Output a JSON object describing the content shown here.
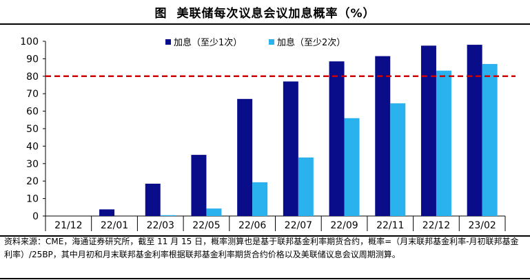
{
  "header": {
    "figure_label": "图",
    "title": "美联储每次议息会议加息概率（%）"
  },
  "chart_data": {
    "type": "bar",
    "title": "美联储每次议息会议加息概率（%）",
    "categories": [
      "21/12",
      "22/01",
      "22/03",
      "22/05",
      "22/06",
      "22/07",
      "22/09",
      "22/11",
      "22/12",
      "23/02"
    ],
    "series": [
      {
        "name": "加息（至少1次）",
        "color": "#0a0d8a",
        "values": [
          0,
          3.8,
          18.5,
          35,
          67,
          77,
          88.5,
          91.5,
          97.5,
          98
        ]
      },
      {
        "name": "加息（至少2次）",
        "color": "#29b2ee",
        "values": [
          0,
          0,
          0.5,
          4.3,
          19.3,
          33.5,
          56,
          64.5,
          83.2,
          87
        ]
      }
    ],
    "ylim": [
      0,
      100
    ],
    "yticks": [
      0,
      10,
      20,
      30,
      40,
      50,
      60,
      70,
      80,
      90,
      100
    ],
    "reference_line": {
      "value": 80,
      "color": "#cc0000",
      "style": "dashed"
    },
    "legend_position": "top",
    "xlabel": "",
    "ylabel": ""
  },
  "source": {
    "text": "资料来源：CME，海通证券研究所，截至 11 月 15 日，概率测算也是基于联邦基金利率期货合约，概率=（月末联邦基金利率-月初联邦基金利率）/25BP，其中月初和月末联邦基金利率根据联邦基金利率期货合约价格以及美联储议息会议周期测算。"
  }
}
